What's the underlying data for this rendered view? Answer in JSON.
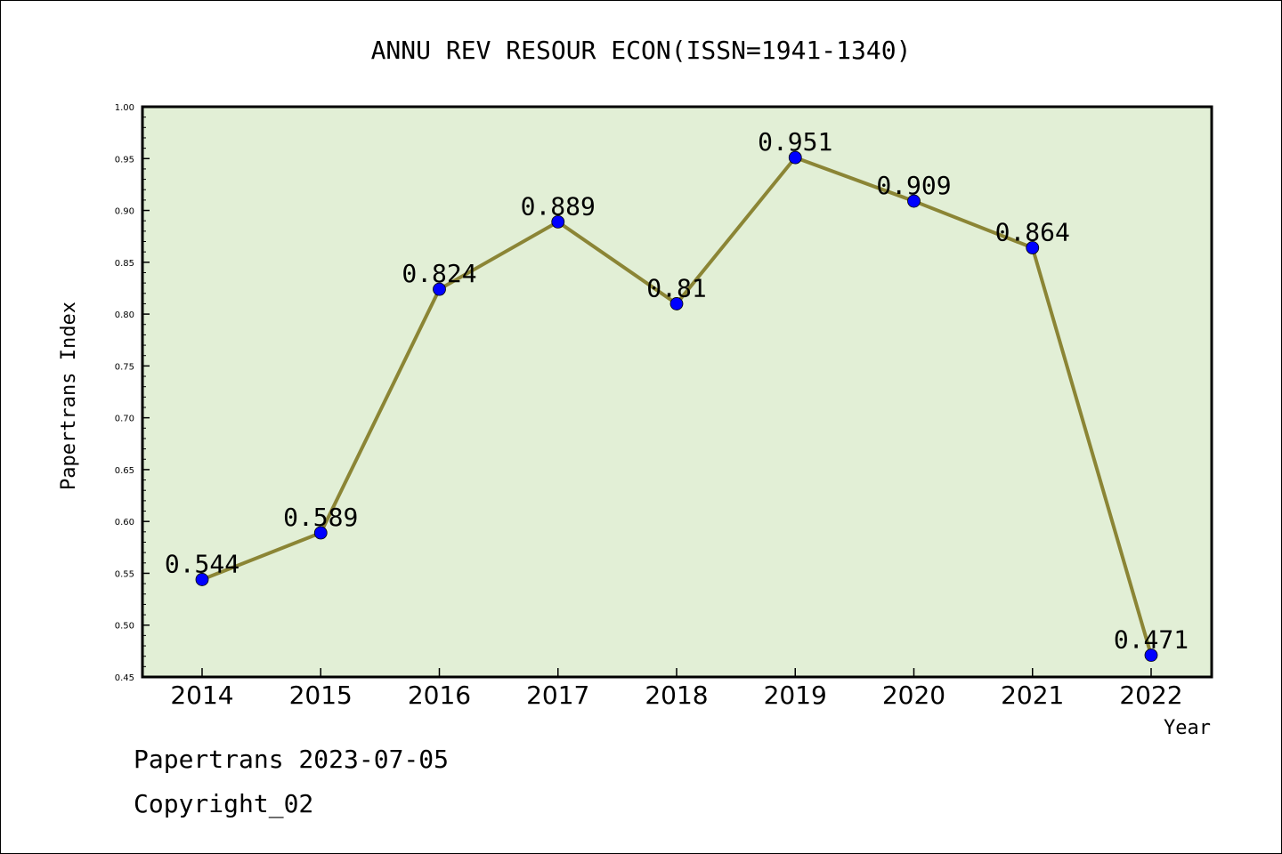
{
  "chart_data": {
    "type": "line",
    "title": "ANNU REV RESOUR ECON(ISSN=1941-1340)",
    "xlabel": "Year",
    "ylabel": "Papertrans Index",
    "categories": [
      "2014",
      "2015",
      "2016",
      "2017",
      "2018",
      "2019",
      "2020",
      "2021",
      "2022"
    ],
    "values": [
      0.544,
      0.589,
      0.824,
      0.889,
      0.81,
      0.951,
      0.909,
      0.864,
      0.471
    ],
    "data_labels": [
      "0.544",
      "0.589",
      "0.824",
      "0.889",
      "0.81",
      "0.951",
      "0.909",
      "0.864",
      "0.471"
    ],
    "ylim": [
      0.45,
      1.0
    ],
    "yticks": [
      "0.45",
      "0.50",
      "0.55",
      "0.60",
      "0.65",
      "0.70",
      "0.75",
      "0.80",
      "0.85",
      "0.90",
      "0.95",
      "1.00"
    ],
    "grid": false,
    "line_color": "#8b8535",
    "marker_color": "#0000ff",
    "plot_background": "#e2efd6"
  },
  "footer": {
    "line1": "Papertrans 2023-07-05",
    "line2": "Copyright_02"
  }
}
